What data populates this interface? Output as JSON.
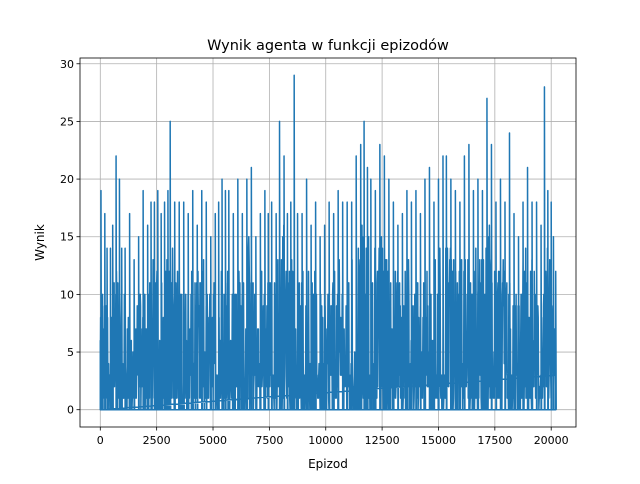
{
  "chart_data": {
    "type": "line",
    "title": "Wynik agenta w funkcji epizodów",
    "xlabel": "Epizod",
    "ylabel": "Wynik",
    "xlim": [
      -900,
      21100
    ],
    "ylim": [
      -1.5,
      30.5
    ],
    "x_ticks": [
      0,
      2500,
      5000,
      7500,
      10000,
      12500,
      15000,
      17500,
      20000
    ],
    "x_tick_labels": [
      "0",
      "2500",
      "5000",
      "7500",
      "10000",
      "12500",
      "15000",
      "17500",
      "20000"
    ],
    "y_ticks": [
      0,
      5,
      10,
      15,
      20,
      25,
      30
    ],
    "y_tick_labels": [
      "0",
      "5",
      "10",
      "15",
      "20",
      "25",
      "30"
    ],
    "grid": true,
    "legend": "none",
    "color": "#1f77b4",
    "episodes": [
      0,
      20200
    ],
    "series": [
      {
        "peaks": [
          [
            0,
            6
          ],
          [
            30,
            19
          ],
          [
            100,
            10
          ],
          [
            200,
            17
          ],
          [
            300,
            14
          ],
          [
            450,
            14
          ],
          [
            550,
            16
          ],
          [
            700,
            22
          ],
          [
            850,
            20
          ],
          [
            950,
            14
          ],
          [
            1100,
            14
          ],
          [
            1300,
            17
          ],
          [
            1500,
            13
          ],
          [
            1700,
            15
          ],
          [
            1900,
            19
          ],
          [
            2100,
            16
          ],
          [
            2250,
            18
          ],
          [
            2400,
            18
          ],
          [
            2550,
            19
          ],
          [
            2700,
            17
          ],
          [
            2850,
            18
          ],
          [
            3000,
            19
          ],
          [
            3100,
            25
          ],
          [
            3300,
            18
          ],
          [
            3500,
            18
          ],
          [
            3700,
            18
          ],
          [
            3900,
            17
          ],
          [
            4100,
            19
          ],
          [
            4300,
            16
          ],
          [
            4500,
            19
          ],
          [
            4700,
            18
          ],
          [
            4900,
            15
          ],
          [
            5100,
            17
          ],
          [
            5250,
            18
          ],
          [
            5400,
            20
          ],
          [
            5550,
            19
          ],
          [
            5700,
            19
          ],
          [
            5900,
            17
          ],
          [
            6100,
            20
          ],
          [
            6300,
            17
          ],
          [
            6500,
            20
          ],
          [
            6700,
            21
          ],
          [
            6900,
            15
          ],
          [
            7100,
            17
          ],
          [
            7300,
            19
          ],
          [
            7450,
            17
          ],
          [
            7600,
            18
          ],
          [
            7800,
            17
          ],
          [
            7950,
            25
          ],
          [
            8150,
            22
          ],
          [
            8300,
            17
          ],
          [
            8450,
            18
          ],
          [
            8600,
            29
          ],
          [
            8750,
            17
          ],
          [
            8950,
            17
          ],
          [
            9150,
            20
          ],
          [
            9350,
            16
          ],
          [
            9550,
            18
          ],
          [
            9750,
            15
          ],
          [
            9950,
            16
          ],
          [
            10150,
            18
          ],
          [
            10350,
            17
          ],
          [
            10550,
            19
          ],
          [
            10750,
            18
          ],
          [
            10950,
            18
          ],
          [
            11150,
            18
          ],
          [
            11350,
            22
          ],
          [
            11550,
            23
          ],
          [
            11700,
            25
          ],
          [
            11850,
            21
          ],
          [
            12000,
            20
          ],
          [
            12200,
            19
          ],
          [
            12400,
            23
          ],
          [
            12600,
            22
          ],
          [
            12800,
            20
          ],
          [
            13000,
            18
          ],
          [
            13200,
            16
          ],
          [
            13400,
            17
          ],
          [
            13600,
            19
          ],
          [
            13800,
            18
          ],
          [
            14000,
            19
          ],
          [
            14200,
            17
          ],
          [
            14400,
            20
          ],
          [
            14600,
            21
          ],
          [
            14800,
            18
          ],
          [
            15000,
            20
          ],
          [
            15200,
            22
          ],
          [
            15350,
            22
          ],
          [
            15550,
            20
          ],
          [
            15750,
            19
          ],
          [
            15950,
            18
          ],
          [
            16150,
            22
          ],
          [
            16350,
            23
          ],
          [
            16550,
            19
          ],
          [
            16750,
            20
          ],
          [
            16950,
            19
          ],
          [
            17150,
            27
          ],
          [
            17350,
            23
          ],
          [
            17550,
            18
          ],
          [
            17750,
            20
          ],
          [
            17950,
            18
          ],
          [
            18150,
            24
          ],
          [
            18350,
            17
          ],
          [
            18550,
            15
          ],
          [
            18750,
            18
          ],
          [
            18950,
            21
          ],
          [
            19150,
            18
          ],
          [
            19350,
            18
          ],
          [
            19550,
            16
          ],
          [
            19700,
            28
          ],
          [
            19850,
            19
          ],
          [
            20000,
            18
          ],
          [
            20100,
            15
          ],
          [
            20200,
            12
          ]
        ]
      }
    ]
  }
}
